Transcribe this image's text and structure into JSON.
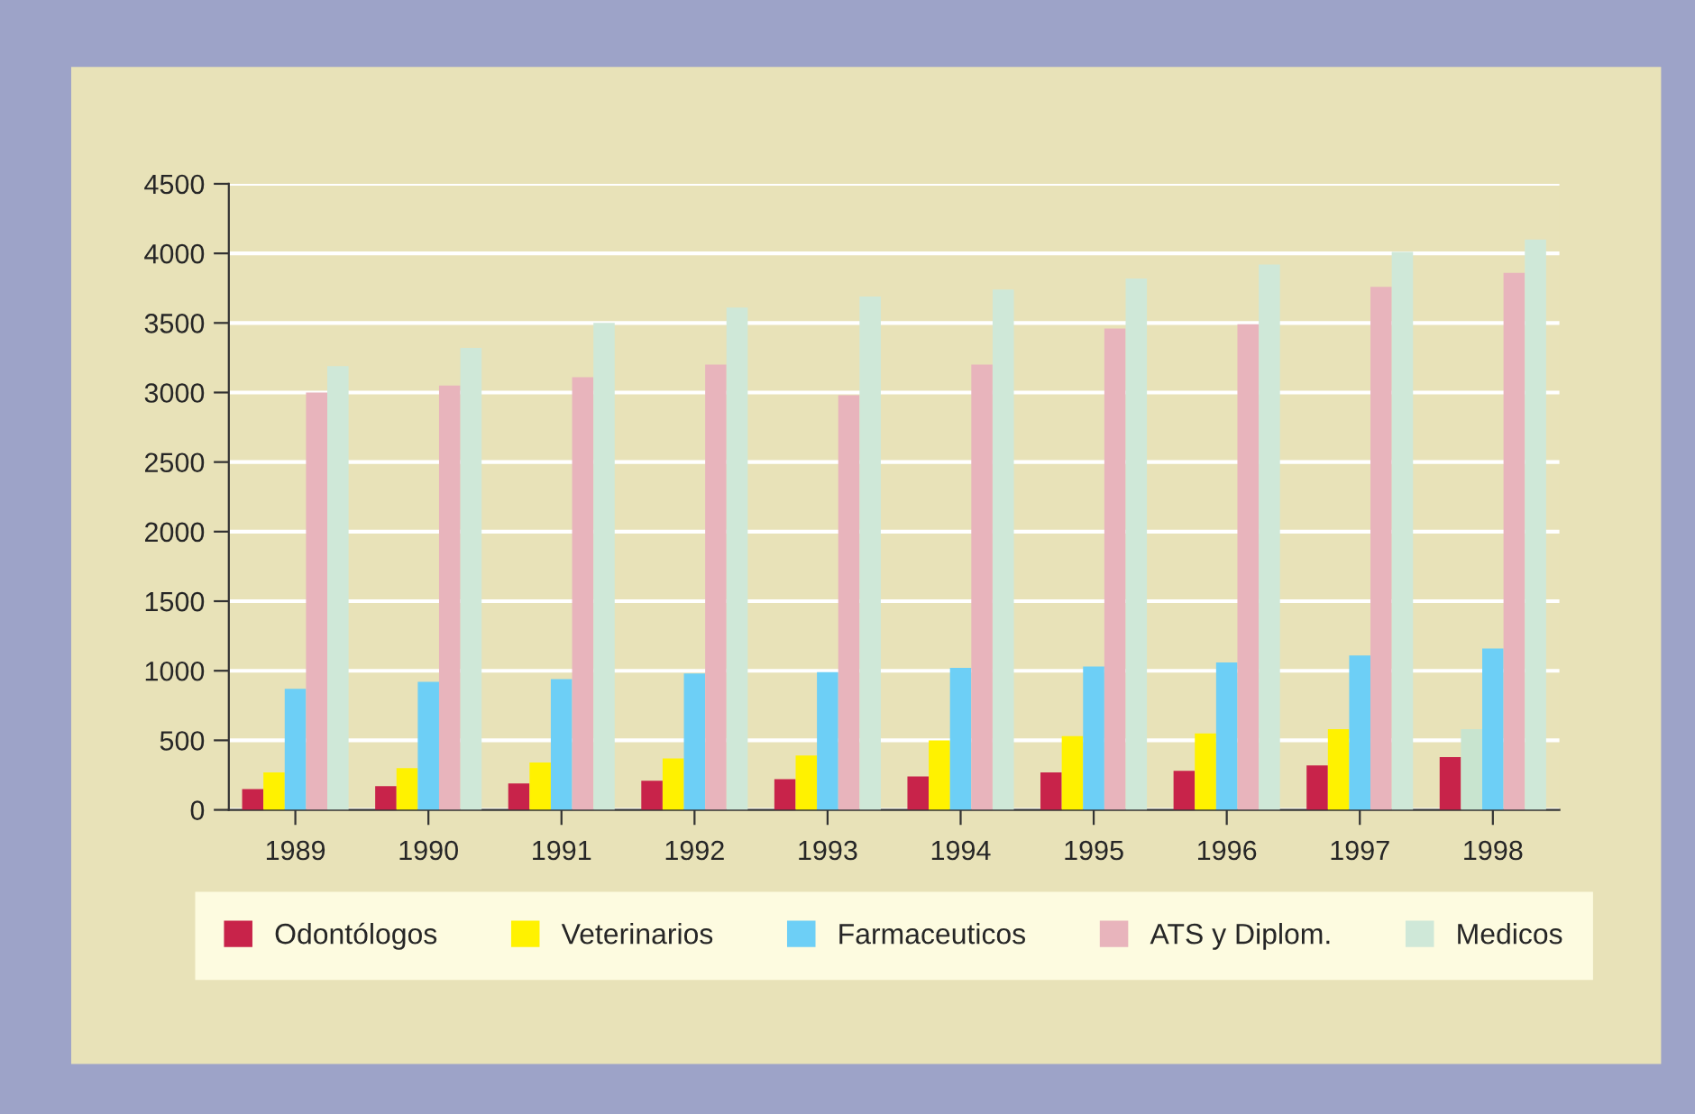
{
  "chart_data": {
    "type": "bar",
    "categories": [
      "1989",
      "1990",
      "1991",
      "1992",
      "1993",
      "1994",
      "1995",
      "1996",
      "1997",
      "1998"
    ],
    "series": [
      {
        "name": "Odontólogos",
        "color": "#c8234a",
        "values": [
          150,
          170,
          190,
          210,
          220,
          240,
          270,
          280,
          320,
          380
        ]
      },
      {
        "name": "Veterinarios",
        "color": "#fff200",
        "colors": [
          "#fff200",
          "#fff200",
          "#fff200",
          "#fff200",
          "#fff200",
          "#fff200",
          "#fff200",
          "#fff200",
          "#fff200",
          "#c8e4cf"
        ],
        "values": [
          270,
          300,
          340,
          370,
          390,
          500,
          530,
          550,
          580,
          580
        ]
      },
      {
        "name": "Farmaceuticos",
        "color": "#6dcff6",
        "values": [
          870,
          920,
          940,
          980,
          990,
          1020,
          1030,
          1060,
          1110,
          1160
        ]
      },
      {
        "name": "ATS y Diplom.",
        "color": "#e8b4bc",
        "values": [
          3000,
          3050,
          3110,
          3200,
          2980,
          3200,
          3460,
          3490,
          3760,
          3860
        ]
      },
      {
        "name": "Medicos",
        "color": "#cfe8d8",
        "values": [
          3190,
          3320,
          3500,
          3610,
          3690,
          3740,
          3820,
          3920,
          4010,
          4100
        ]
      }
    ],
    "ylim": [
      0,
      4500
    ],
    "yticks": [
      0,
      500,
      1000,
      1500,
      2000,
      2500,
      3000,
      3500,
      4000,
      4500
    ],
    "grid": "y",
    "legend": "bottom"
  }
}
